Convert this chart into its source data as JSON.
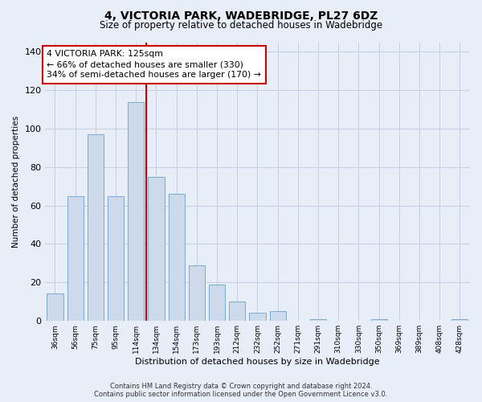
{
  "title1": "4, VICTORIA PARK, WADEBRIDGE, PL27 6DZ",
  "title2": "Size of property relative to detached houses in Wadebridge",
  "xlabel": "Distribution of detached houses by size in Wadebridge",
  "ylabel": "Number of detached properties",
  "categories": [
    "36sqm",
    "56sqm",
    "75sqm",
    "95sqm",
    "114sqm",
    "134sqm",
    "154sqm",
    "173sqm",
    "193sqm",
    "212sqm",
    "232sqm",
    "252sqm",
    "271sqm",
    "291sqm",
    "310sqm",
    "330sqm",
    "350sqm",
    "369sqm",
    "389sqm",
    "408sqm",
    "428sqm"
  ],
  "values": [
    14,
    65,
    97,
    65,
    114,
    75,
    66,
    29,
    19,
    10,
    4,
    5,
    0,
    1,
    0,
    0,
    1,
    0,
    0,
    0,
    1
  ],
  "bar_color": "#ccdaec",
  "bar_edge_color": "#7aaad0",
  "vline_color": "#cc0000",
  "vline_index": 4,
  "ylim": [
    0,
    145
  ],
  "yticks": [
    0,
    20,
    40,
    60,
    80,
    100,
    120,
    140
  ],
  "annotation_line1": "4 VICTORIA PARK: 125sqm",
  "annotation_line2": "← 66% of detached houses are smaller (330)",
  "annotation_line3": "34% of semi-detached houses are larger (170) →",
  "annotation_box_facecolor": "#ffffff",
  "annotation_box_edgecolor": "#cc0000",
  "footer1": "Contains HM Land Registry data © Crown copyright and database right 2024.",
  "footer2": "Contains public sector information licensed under the Open Government Licence v3.0.",
  "background_color": "#e8eef8",
  "grid_color": "#c5cfe0"
}
